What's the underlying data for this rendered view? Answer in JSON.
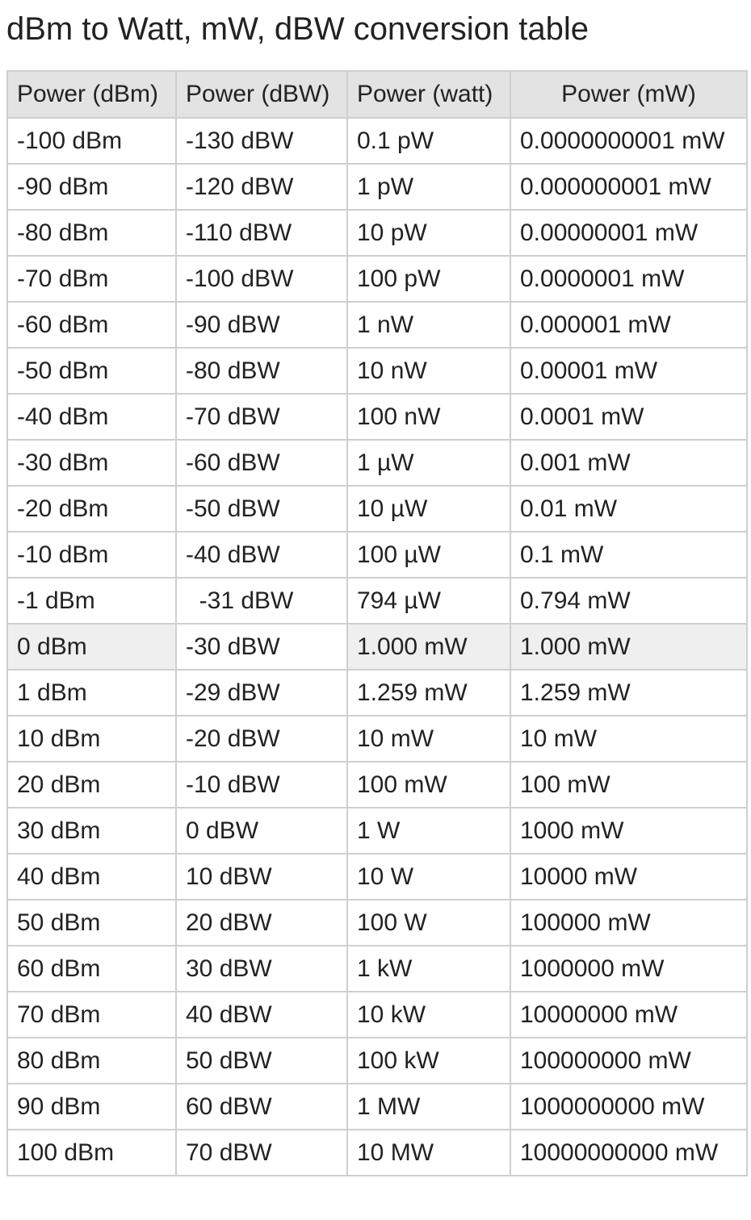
{
  "title": "dBm to Watt, mW, dBW conversion table",
  "headers": [
    "Power (dBm)",
    "Power (dBW)",
    "Power (watt)",
    "Power (mW)"
  ],
  "rows": [
    {
      "cells": [
        "-100 dBm",
        "-130 dBW",
        "0.1 pW",
        "0.0000000001 mW"
      ],
      "highlight": [
        false,
        false,
        false,
        false
      ]
    },
    {
      "cells": [
        "-90 dBm",
        "-120 dBW",
        "1 pW",
        "0.000000001 mW"
      ],
      "highlight": [
        false,
        false,
        false,
        false
      ]
    },
    {
      "cells": [
        "-80 dBm",
        "-110 dBW",
        "10 pW",
        "0.00000001 mW"
      ],
      "highlight": [
        false,
        false,
        false,
        false
      ]
    },
    {
      "cells": [
        "-70 dBm",
        "-100 dBW",
        "100 pW",
        "0.0000001 mW"
      ],
      "highlight": [
        false,
        false,
        false,
        false
      ]
    },
    {
      "cells": [
        "-60 dBm",
        "-90 dBW",
        "1 nW",
        "0.000001 mW"
      ],
      "highlight": [
        false,
        false,
        false,
        false
      ]
    },
    {
      "cells": [
        "-50 dBm",
        "-80 dBW",
        "10 nW",
        "0.00001 mW"
      ],
      "highlight": [
        false,
        false,
        false,
        false
      ]
    },
    {
      "cells": [
        "-40 dBm",
        "-70 dBW",
        "100 nW",
        "0.0001 mW"
      ],
      "highlight": [
        false,
        false,
        false,
        false
      ]
    },
    {
      "cells": [
        "-30 dBm",
        "-60 dBW",
        "1 µW",
        "0.001 mW"
      ],
      "highlight": [
        false,
        false,
        false,
        false
      ]
    },
    {
      "cells": [
        "-20 dBm",
        "-50 dBW",
        "10 µW",
        "0.01 mW"
      ],
      "highlight": [
        false,
        false,
        false,
        false
      ]
    },
    {
      "cells": [
        "-10 dBm",
        "-40 dBW",
        "100 µW",
        "0.1 mW"
      ],
      "highlight": [
        false,
        false,
        false,
        false
      ]
    },
    {
      "cells": [
        "-1 dBm",
        "  -31 dBW",
        "794 µW",
        "0.794 mW"
      ],
      "highlight": [
        false,
        false,
        false,
        false
      ]
    },
    {
      "cells": [
        "0 dBm",
        "-30 dBW",
        "1.000 mW",
        "1.000 mW"
      ],
      "highlight": [
        true,
        false,
        true,
        true
      ]
    },
    {
      "cells": [
        "1 dBm",
        "-29 dBW",
        "1.259 mW",
        "1.259 mW"
      ],
      "highlight": [
        false,
        false,
        false,
        false
      ]
    },
    {
      "cells": [
        "10 dBm",
        "-20 dBW",
        "10 mW",
        "10 mW"
      ],
      "highlight": [
        false,
        false,
        false,
        false
      ]
    },
    {
      "cells": [
        "20 dBm",
        "-10 dBW",
        "100 mW",
        "100 mW"
      ],
      "highlight": [
        false,
        false,
        false,
        false
      ]
    },
    {
      "cells": [
        "30 dBm",
        "0 dBW",
        "1 W",
        "1000 mW"
      ],
      "highlight": [
        false,
        false,
        false,
        false
      ]
    },
    {
      "cells": [
        "40 dBm",
        "10 dBW",
        "10 W",
        "10000 mW"
      ],
      "highlight": [
        false,
        false,
        false,
        false
      ]
    },
    {
      "cells": [
        "50 dBm",
        "20 dBW",
        "100 W",
        "100000 mW"
      ],
      "highlight": [
        false,
        false,
        false,
        false
      ]
    },
    {
      "cells": [
        "60 dBm",
        "30 dBW",
        "1 kW",
        "1000000 mW"
      ],
      "highlight": [
        false,
        false,
        false,
        false
      ]
    },
    {
      "cells": [
        "70 dBm",
        "40 dBW",
        "10 kW",
        "10000000 mW"
      ],
      "highlight": [
        false,
        false,
        false,
        false
      ]
    },
    {
      "cells": [
        "80 dBm",
        "50 dBW",
        "100 kW",
        "100000000 mW"
      ],
      "highlight": [
        false,
        false,
        false,
        false
      ]
    },
    {
      "cells": [
        "90 dBm",
        "60 dBW",
        "1 MW",
        "1000000000 mW"
      ],
      "highlight": [
        false,
        false,
        false,
        false
      ]
    },
    {
      "cells": [
        "100 dBm",
        "70 dBW",
        "10 MW",
        "10000000000 mW"
      ],
      "highlight": [
        false,
        false,
        false,
        false
      ]
    }
  ]
}
